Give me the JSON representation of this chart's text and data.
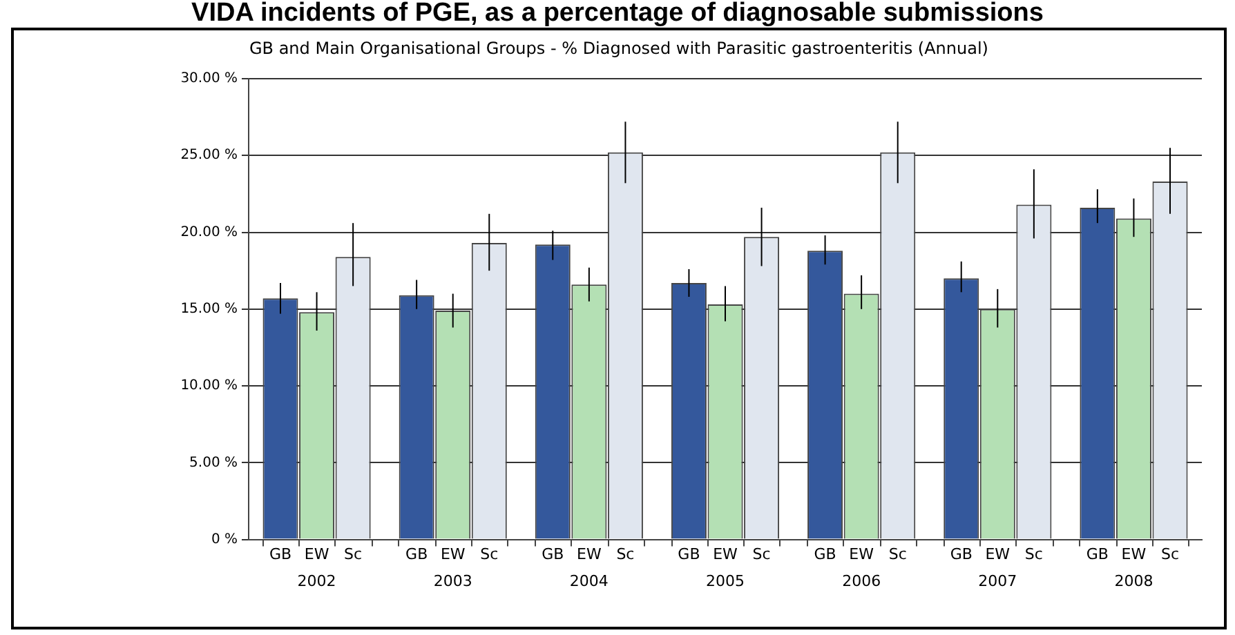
{
  "chart_data": {
    "type": "bar",
    "title": "VIDA incidents of PGE, as a percentage of diagnosable submissions",
    "subtitle": "GB and Main Organisational Groups -  % Diagnosed with Parasitic gastroenteritis (Annual)",
    "categories": [
      "2002",
      "2003",
      "2004",
      "2005",
      "2006",
      "2007",
      "2008"
    ],
    "series": [
      {
        "name": "GB",
        "color": "#34589c",
        "values": [
          15.7,
          15.9,
          19.2,
          16.7,
          18.8,
          17.0,
          21.6
        ],
        "errors": [
          [
            14.7,
            16.7
          ],
          [
            15.0,
            16.9
          ],
          [
            18.2,
            20.1
          ],
          [
            15.8,
            17.6
          ],
          [
            17.9,
            19.8
          ],
          [
            16.1,
            18.1
          ],
          [
            20.6,
            22.8
          ]
        ]
      },
      {
        "name": "EW",
        "color": "#b4e0b4",
        "values": [
          14.8,
          14.9,
          16.6,
          15.3,
          16.0,
          15.0,
          20.9
        ],
        "errors": [
          [
            13.6,
            16.1
          ],
          [
            13.8,
            16.0
          ],
          [
            15.5,
            17.7
          ],
          [
            14.2,
            16.5
          ],
          [
            15.0,
            17.2
          ],
          [
            13.8,
            16.3
          ],
          [
            19.7,
            22.2
          ]
        ]
      },
      {
        "name": "Sc",
        "color": "#e0e6ef",
        "values": [
          18.4,
          19.3,
          25.2,
          19.7,
          25.2,
          21.8,
          23.3
        ],
        "errors": [
          [
            16.5,
            20.6
          ],
          [
            17.5,
            21.2
          ],
          [
            23.2,
            27.2
          ],
          [
            17.8,
            21.6
          ],
          [
            23.2,
            27.2
          ],
          [
            19.6,
            24.1
          ],
          [
            21.2,
            25.5
          ]
        ]
      }
    ],
    "ylim": [
      0,
      30
    ],
    "yticks": [
      {
        "value": 0,
        "label": "0 %"
      },
      {
        "value": 5,
        "label": "5.00 %"
      },
      {
        "value": 10,
        "label": "10.00 %"
      },
      {
        "value": 15,
        "label": "15.00 %"
      },
      {
        "value": 20,
        "label": "20.00 %"
      },
      {
        "value": 25,
        "label": "25.00 %"
      },
      {
        "value": 30,
        "label": "30.00 %"
      }
    ],
    "grid": "y",
    "legend": false
  }
}
